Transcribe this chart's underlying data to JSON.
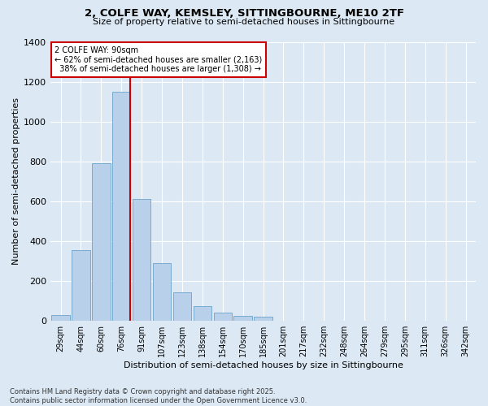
{
  "title_line1": "2, COLFE WAY, KEMSLEY, SITTINGBOURNE, ME10 2TF",
  "title_line2": "Size of property relative to semi-detached houses in Sittingbourne",
  "xlabel": "Distribution of semi-detached houses by size in Sittingbourne",
  "ylabel": "Number of semi-detached properties",
  "categories": [
    "29sqm",
    "44sqm",
    "60sqm",
    "76sqm",
    "91sqm",
    "107sqm",
    "123sqm",
    "138sqm",
    "154sqm",
    "170sqm",
    "185sqm",
    "201sqm",
    "217sqm",
    "232sqm",
    "248sqm",
    "264sqm",
    "279sqm",
    "295sqm",
    "311sqm",
    "326sqm",
    "342sqm"
  ],
  "values": [
    30,
    355,
    790,
    1150,
    610,
    290,
    145,
    75,
    40,
    25,
    20,
    0,
    0,
    0,
    0,
    0,
    0,
    0,
    0,
    0,
    0
  ],
  "bar_color": "#b8d0ea",
  "bar_edge_color": "#7aaad0",
  "vline_color": "#cc0000",
  "property_size": "90sqm",
  "pct_smaller": 62,
  "n_smaller": 2163,
  "pct_larger": 38,
  "n_larger": 1308,
  "annotation_box_color": "#cc0000",
  "annotation_text_color": "#000000",
  "background_color": "#dce9f5",
  "ylim": [
    0,
    1400
  ],
  "yticks": [
    0,
    200,
    400,
    600,
    800,
    1000,
    1200,
    1400
  ],
  "footer_line1": "Contains HM Land Registry data © Crown copyright and database right 2025.",
  "footer_line2": "Contains public sector information licensed under the Open Government Licence v3.0."
}
